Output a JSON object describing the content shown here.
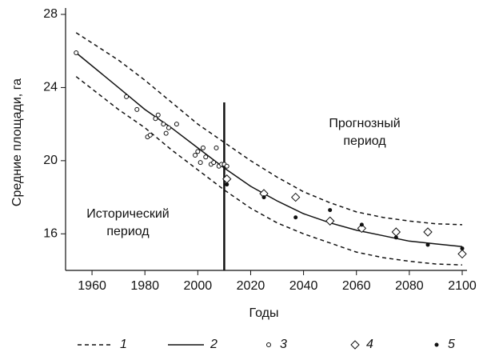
{
  "chart_data": {
    "type": "line",
    "y_label": "Средние площади, га",
    "x_label": "Годы",
    "xlim": [
      1950,
      2100
    ],
    "xticks": [
      1960,
      1980,
      2000,
      2020,
      2040,
      2060,
      2080,
      2100
    ],
    "ylim": [
      14,
      28
    ],
    "yticks": [
      16,
      20,
      24,
      28
    ],
    "vline_x": 2010,
    "annotations": [
      [
        "Прогнозный",
        "период"
      ],
      [
        "Исторический",
        "период"
      ]
    ],
    "series": [
      {
        "name": "1",
        "style": "dashed",
        "color": "#111111",
        "x": [
          1954,
          1970,
          1980,
          1990,
          2000,
          2010,
          2020,
          2030,
          2040,
          2050,
          2060,
          2070,
          2080,
          2090,
          2100
        ],
        "values": [
          27.0,
          25.5,
          24.4,
          23.2,
          22.0,
          21.0,
          20.0,
          19.1,
          18.3,
          17.7,
          17.2,
          16.9,
          16.7,
          16.55,
          16.5
        ],
        "lower": [
          24.6,
          22.8,
          21.8,
          20.6,
          19.5,
          18.4,
          17.4,
          16.6,
          16.0,
          15.5,
          15.0,
          14.7,
          14.5,
          14.35,
          14.3
        ]
      },
      {
        "name": "2",
        "style": "solid",
        "color": "#111111",
        "x": [
          1954,
          1970,
          1980,
          1990,
          2000,
          2010,
          2020,
          2030,
          2040,
          2050,
          2060,
          2070,
          2080,
          2090,
          2100
        ],
        "values": [
          25.9,
          24.0,
          22.8,
          21.8,
          20.7,
          19.6,
          18.6,
          17.8,
          17.1,
          16.6,
          16.2,
          15.9,
          15.6,
          15.45,
          15.3
        ]
      },
      {
        "name": "3",
        "style": "circle",
        "color": "#111111",
        "x": [
          1954,
          1973,
          1977,
          1981,
          1982,
          1984,
          1985,
          1987,
          1988,
          1989,
          1992,
          1999,
          2000,
          2001,
          2002,
          2003,
          2005,
          2006,
          2007,
          2008,
          2009,
          2010,
          2011
        ],
        "values": [
          25.9,
          23.5,
          22.8,
          21.3,
          21.4,
          22.3,
          22.5,
          22.0,
          21.5,
          21.8,
          22.0,
          20.3,
          20.5,
          19.9,
          20.7,
          20.2,
          19.8,
          19.9,
          20.7,
          19.7,
          19.8,
          19.8,
          19.7
        ]
      },
      {
        "name": "4",
        "style": "diamond",
        "color": "#111111",
        "x": [
          2011,
          2025,
          2037,
          2050,
          2062,
          2075,
          2087,
          2100
        ],
        "values": [
          19.0,
          18.2,
          18.0,
          16.7,
          16.3,
          16.1,
          16.1,
          14.9
        ]
      },
      {
        "name": "5",
        "style": "dot",
        "color": "#111111",
        "x": [
          2011,
          2025,
          2037,
          2050,
          2062,
          2075,
          2087,
          2100
        ],
        "values": [
          18.7,
          18.0,
          16.9,
          17.3,
          16.5,
          15.8,
          15.4,
          15.2
        ]
      }
    ]
  }
}
